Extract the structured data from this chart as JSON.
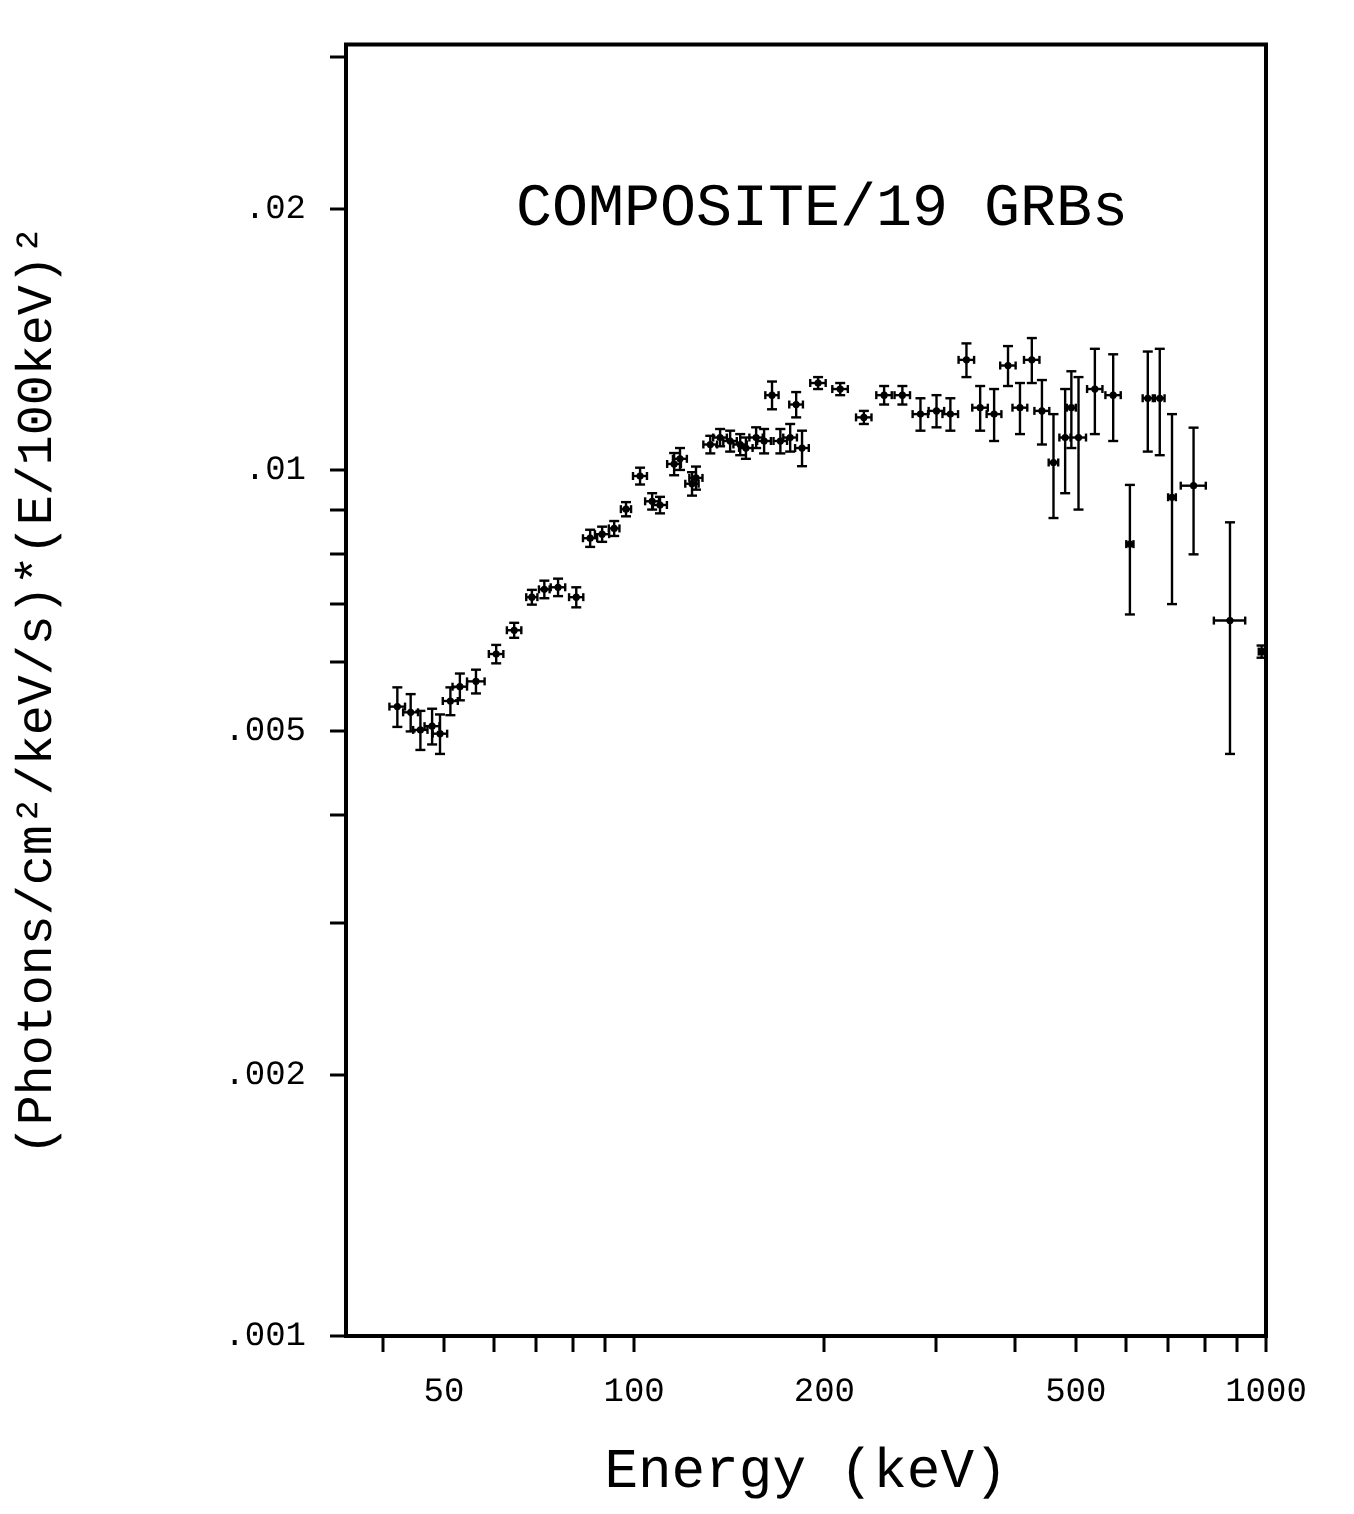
{
  "chart_data": {
    "type": "scatter",
    "title": "COMPOSITE/19 GRBs",
    "xlabel": "Energy (keV)",
    "ylabel": "(Photons/cm²/keV/s)*(E/100keV)²",
    "log": "xy",
    "grid": false,
    "legend": false,
    "marker": "circle",
    "xlim": [
      35,
      1000
    ],
    "xticks": [
      {
        "value": 40,
        "label": null
      },
      50,
      {
        "value": 60,
        "label": null
      },
      {
        "value": 70,
        "label": null
      },
      {
        "value": 80,
        "label": null
      },
      {
        "value": 90,
        "label": null
      },
      100,
      200,
      {
        "value": 300,
        "label": null
      },
      {
        "value": 400,
        "label": null
      },
      500,
      {
        "value": 600,
        "label": null
      },
      {
        "value": 700,
        "label": null
      },
      {
        "value": 800,
        "label": null
      },
      {
        "value": 900,
        "label": null
      },
      1000
    ],
    "ylim": [
      0.001,
      0.031
    ],
    "yticks": [
      {
        "value": 0.001,
        "label": ".001"
      },
      {
        "value": 0.002,
        "label": ".002"
      },
      {
        "value": 0.003,
        "label": null
      },
      {
        "value": 0.004,
        "label": null
      },
      {
        "value": 0.005,
        "label": ".005"
      },
      {
        "value": 0.006,
        "label": null
      },
      {
        "value": 0.007,
        "label": null
      },
      {
        "value": 0.008,
        "label": null
      },
      {
        "value": 0.009,
        "label": null
      },
      {
        "value": 0.01,
        "label": ".01"
      },
      {
        "value": 0.02,
        "label": ".02"
      },
      {
        "value": 0.03,
        "label": null
      }
    ],
    "series": [
      {
        "color": "#000000",
        "x": [
          42.2,
          44.3,
          45.9,
          47.9,
          49.3,
          51.2,
          53.0,
          56.2,
          60.5,
          64.6,
          68.9,
          72.1,
          75.8,
          81.0,
          85.2,
          89.0,
          93.0,
          97.1,
          102.2,
          106.8,
          109.9,
          115.7,
          118.2,
          123.5,
          125.3,
          132,
          136.8,
          141.9,
          147.2,
          150.3,
          156,
          160.6,
          165.3,
          170.4,
          176.6,
          180.5,
          184.4,
          195.5,
          211.9,
          231,
          248.7,
          265.8,
          283.9,
          301,
          316.6,
          335.7,
          352.9,
          371.3,
          390.6,
          408,
          426,
          442,
          461,
          481,
          492,
          505,
          536,
          573,
          609,
          650,
          679,
          710,
          768,
          877,
          984
        ],
        "values": [
          0.00533,
          0.00525,
          0.00501,
          0.00506,
          0.00496,
          0.00541,
          0.00562,
          0.0057,
          0.00613,
          0.00653,
          0.00713,
          0.00728,
          0.00732,
          0.00713,
          0.00834,
          0.00843,
          0.00856,
          0.00901,
          0.00984,
          0.0092,
          0.00911,
          0.01016,
          0.0103,
          0.00964,
          0.00979,
          0.0107,
          0.0109,
          0.0108,
          0.0107,
          0.0106,
          0.0109,
          0.0108,
          0.0122,
          0.0108,
          0.0109,
          0.0119,
          0.0106,
          0.0126,
          0.0124,
          0.0115,
          0.0122,
          0.0122,
          0.0116,
          0.0117,
          0.0116,
          0.0134,
          0.0118,
          0.0116,
          0.0132,
          0.0118,
          0.0134,
          0.0117,
          0.0102,
          0.0109,
          0.0118,
          0.0109,
          0.0124,
          0.0122,
          0.00821,
          0.0121,
          0.0121,
          0.0093,
          0.00959,
          0.0067,
          0.00617
        ],
        "errors": [
          0.00028,
          0.00026,
          0.00026,
          0.00024,
          0.00026,
          0.0002,
          0.0002,
          0.00018,
          0.00015,
          0.00013,
          0.00014,
          0.00017,
          0.00017,
          0.00019,
          0.00019,
          0.00017,
          0.00017,
          0.00017,
          0.00022,
          0.0002,
          0.0002,
          0.0003,
          0.0003,
          0.0003,
          0.0003,
          0.00025,
          0.00025,
          0.0003,
          0.0003,
          0.0003,
          0.0003,
          0.00035,
          0.00045,
          0.00035,
          0.0004,
          0.0004,
          0.0005,
          0.0002,
          0.0002,
          0.0002,
          0.0003,
          0.0003,
          0.0005,
          0.0005,
          0.0005,
          0.0006,
          0.0007,
          0.0008,
          0.0007,
          0.0008,
          0.0008,
          0.001,
          0.0014,
          0.0015,
          0.0012,
          0.0019,
          0.0014,
          0.0014,
          0.0014,
          0.0016,
          0.0017,
          0.0023,
          0.0016,
          0.002,
          0.0001
        ],
        "xerrors": [
          1.2,
          1.2,
          1.2,
          1.3,
          1.3,
          1.4,
          1.4,
          1.8,
          1.6,
          1.7,
          1.4,
          1.4,
          2.0,
          2.1,
          2.2,
          2.3,
          1.8,
          1.8,
          2.6,
          2.7,
          2.8,
          2.9,
          3,
          3,
          3,
          3.3,
          3.4,
          3.5,
          3.6,
          3.7,
          3.8,
          4,
          4,
          4.2,
          4.4,
          4.5,
          4.6,
          5.5,
          6,
          6.5,
          7,
          7.5,
          8,
          8.5,
          9,
          9.5,
          10,
          10,
          11,
          11,
          12,
          12,
          8,
          10,
          8,
          14,
          15,
          16,
          8,
          12,
          12,
          10,
          35,
          50,
          10
        ]
      }
    ]
  }
}
